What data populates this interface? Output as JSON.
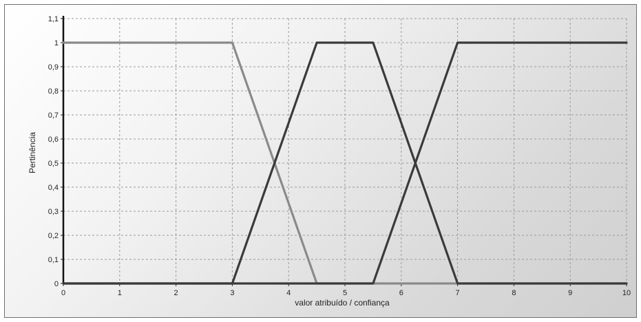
{
  "chart_data": {
    "type": "line",
    "title": "",
    "xlabel": "valor atribuído / confiança",
    "ylabel": "Pertinência",
    "xlim": [
      0,
      10
    ],
    "ylim": [
      0,
      1.1
    ],
    "x_ticks": [
      "0",
      "1",
      "2",
      "3",
      "4",
      "5",
      "6",
      "7",
      "8",
      "9",
      "10"
    ],
    "y_ticks": [
      "0",
      "0,1",
      "0,2",
      "0,3",
      "0,4",
      "0,5",
      "0,6",
      "0,7",
      "0,8",
      "0,9",
      "1",
      "1,1"
    ],
    "grid": true,
    "legend": "none",
    "series": [
      {
        "color": "#8a8a8a",
        "x": [
          0,
          3,
          4.5,
          10
        ],
        "y": [
          1,
          1,
          0,
          0
        ]
      },
      {
        "color": "#3a3a3a",
        "x": [
          0,
          3,
          4.5,
          5.5,
          7,
          10
        ],
        "y": [
          0,
          0,
          1,
          1,
          0,
          0
        ]
      },
      {
        "color": "#3a3a3a",
        "x": [
          0,
          5.5,
          7,
          10
        ],
        "y": [
          0,
          0,
          1,
          1
        ]
      }
    ]
  }
}
